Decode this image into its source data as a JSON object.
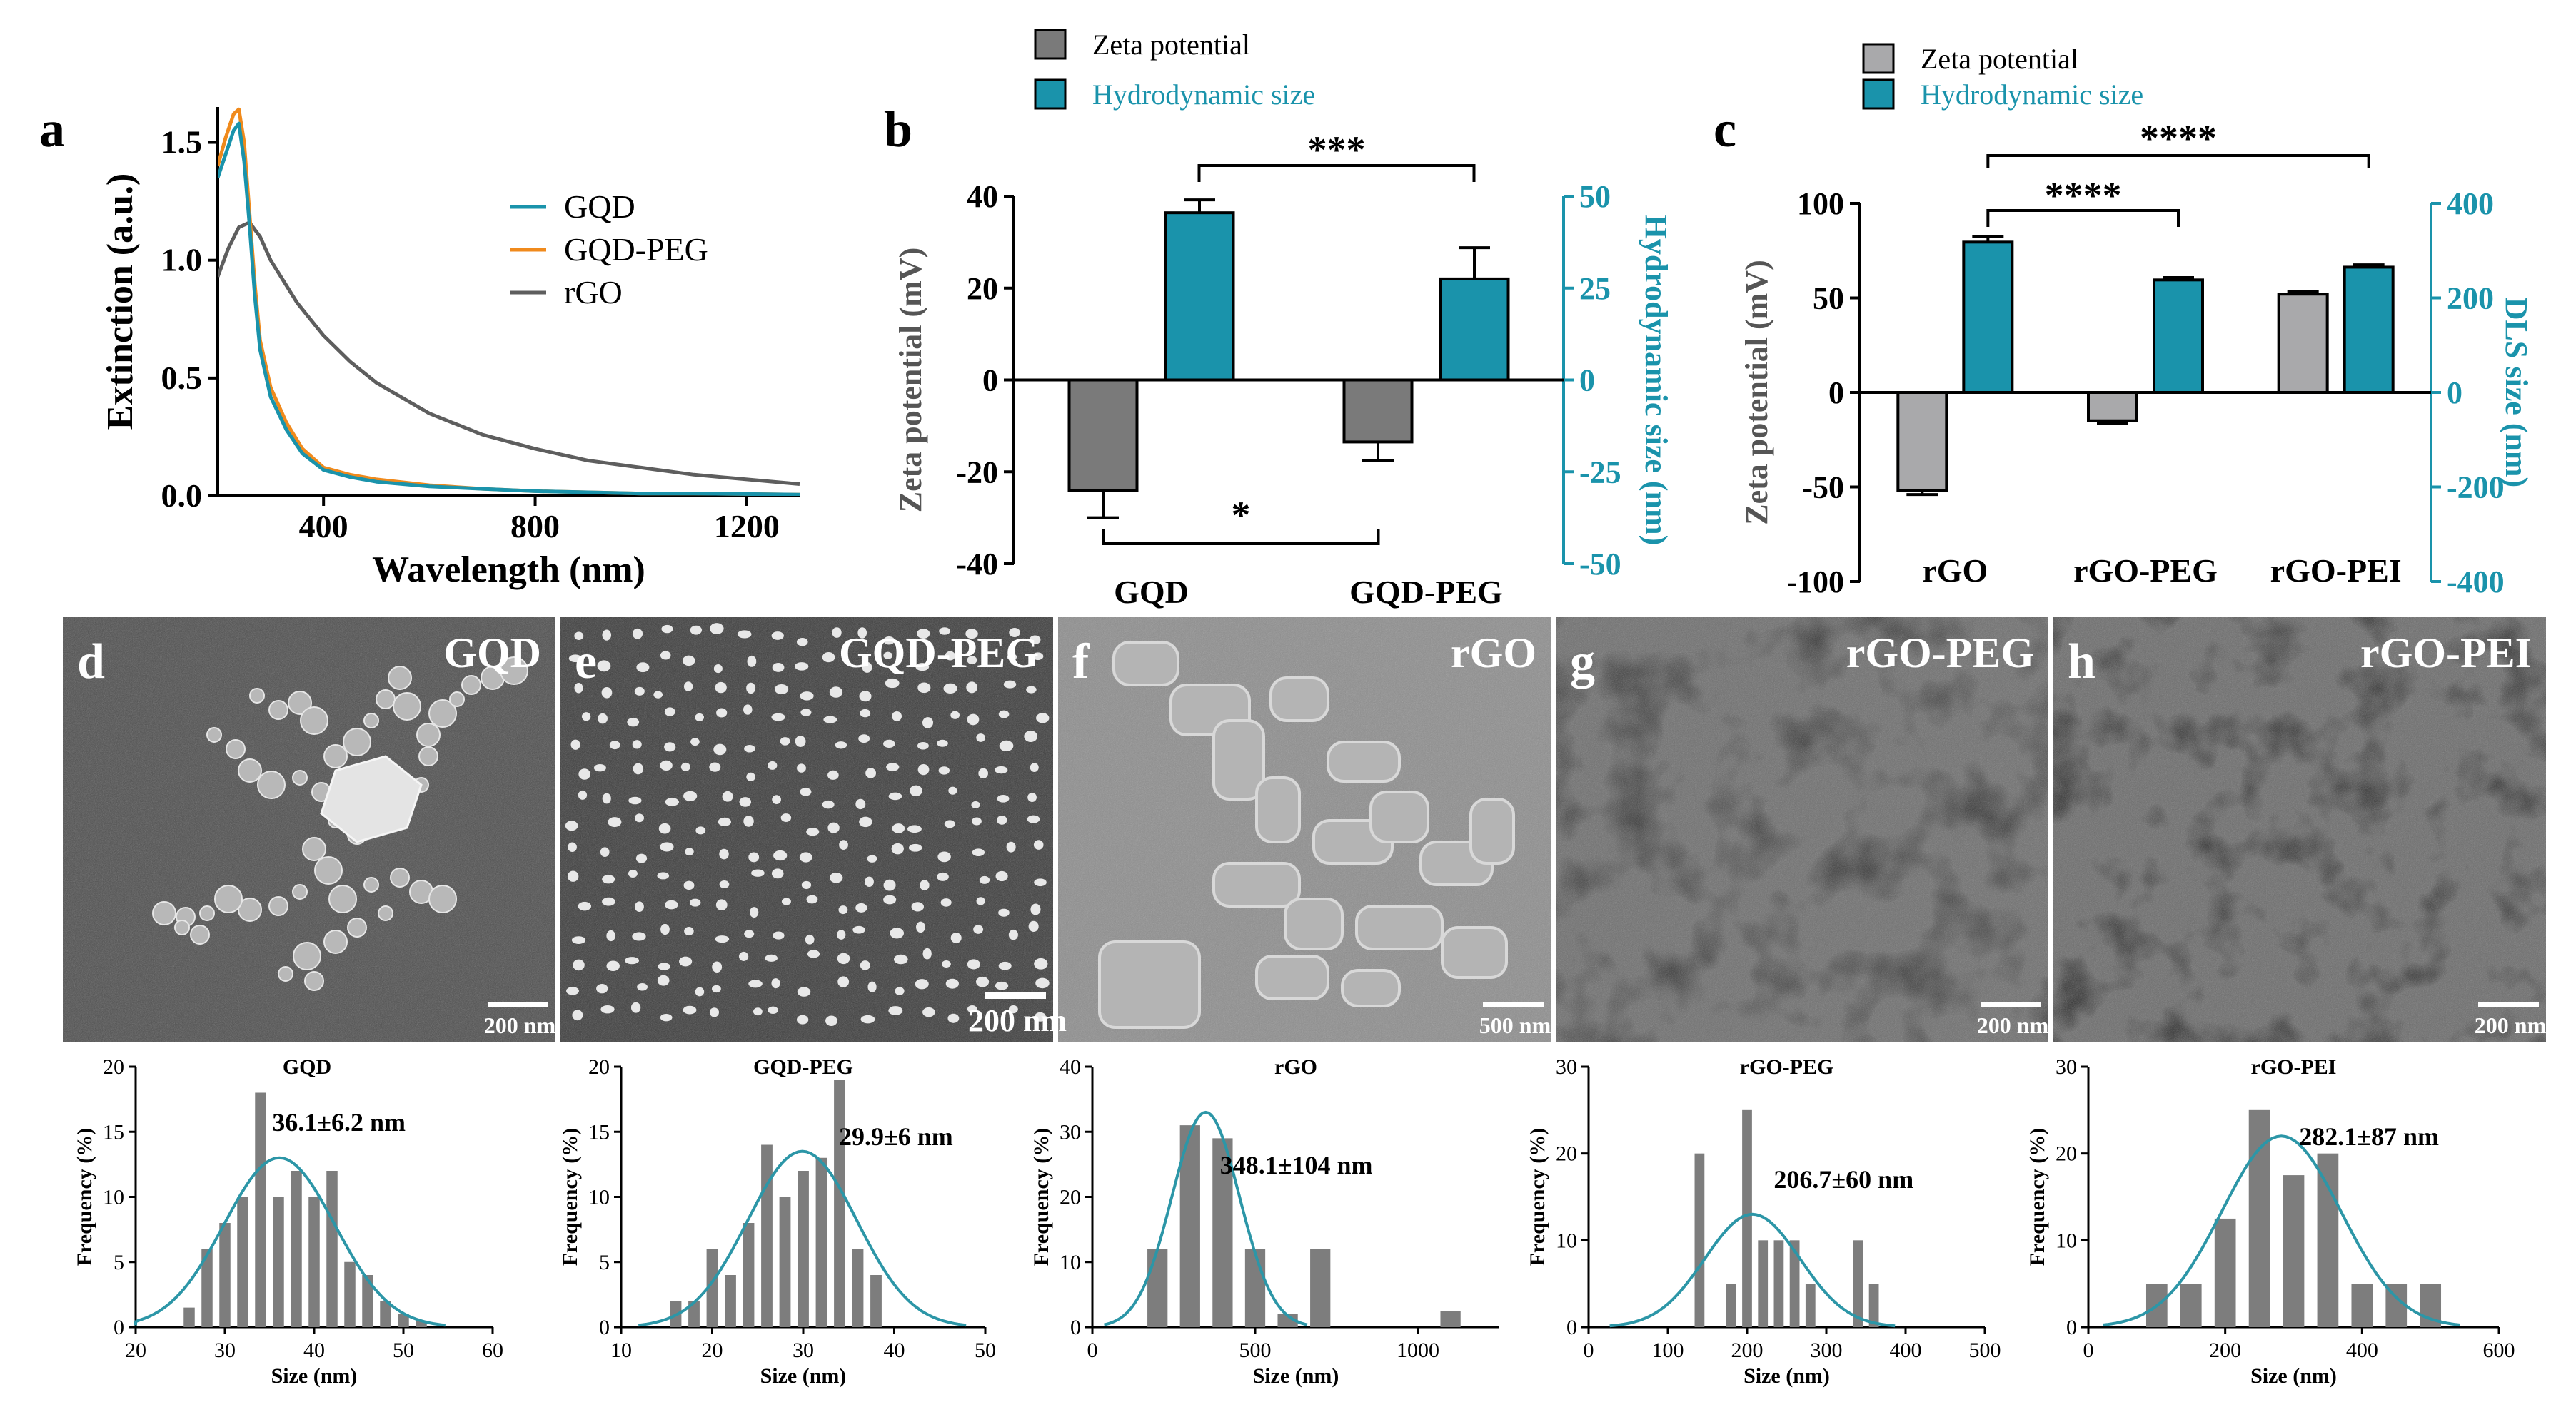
{
  "colors": {
    "teal": "#1a93ab",
    "orange": "#f08a1c",
    "gray": "#5e5e5e",
    "darkbar": "#7a7a7a",
    "lightbar": "#a9a9ab",
    "histbar": "#7d7d7d",
    "fit": "#2c96a7"
  },
  "panel_a": {
    "letter": "a",
    "chart_data": {
      "type": "line",
      "xlabel": "Wavelength (nm)",
      "ylabel": "Extinction (a.u.)",
      "xlim": [
        200,
        1300
      ],
      "ylim": [
        0,
        1.65
      ],
      "xticks": [
        "400",
        "800",
        "1200"
      ],
      "yticks": [
        "0.0",
        "0.5",
        "1.0",
        "1.5"
      ],
      "xtick_values": [
        400,
        800,
        1200
      ],
      "ytick_values": [
        0,
        0.5,
        1.0,
        1.5
      ],
      "series": [
        {
          "name": "GQD",
          "color": "#1a93ab",
          "x": [
            200,
            215,
            230,
            240,
            250,
            260,
            270,
            280,
            300,
            330,
            360,
            400,
            450,
            500,
            600,
            700,
            800,
            900,
            1000,
            1100,
            1200,
            1300
          ],
          "y": [
            1.35,
            1.45,
            1.55,
            1.58,
            1.42,
            1.15,
            0.85,
            0.62,
            0.42,
            0.28,
            0.18,
            0.11,
            0.08,
            0.06,
            0.04,
            0.03,
            0.02,
            0.015,
            0.01,
            0.01,
            0.008,
            0.005
          ]
        },
        {
          "name": "GQD-PEG",
          "color": "#f08a1c",
          "x": [
            200,
            215,
            230,
            240,
            250,
            260,
            270,
            280,
            300,
            330,
            360,
            400,
            450,
            500,
            600,
            700,
            800,
            900,
            1000,
            1100,
            1200,
            1300
          ],
          "y": [
            1.4,
            1.52,
            1.62,
            1.64,
            1.5,
            1.2,
            0.9,
            0.66,
            0.46,
            0.31,
            0.2,
            0.12,
            0.09,
            0.07,
            0.045,
            0.03,
            0.02,
            0.015,
            0.01,
            0.01,
            0.008,
            0.005
          ]
        },
        {
          "name": "rGO",
          "color": "#5e5e5e",
          "x": [
            200,
            220,
            240,
            260,
            280,
            300,
            350,
            400,
            450,
            500,
            600,
            700,
            800,
            900,
            1000,
            1100,
            1200,
            1300
          ],
          "y": [
            0.93,
            1.05,
            1.14,
            1.16,
            1.1,
            1.0,
            0.82,
            0.68,
            0.57,
            0.48,
            0.35,
            0.26,
            0.2,
            0.15,
            0.12,
            0.09,
            0.07,
            0.05
          ]
        }
      ]
    }
  },
  "panel_b": {
    "letter": "b",
    "legend": [
      "Zeta potential",
      "Hydrodynamic size"
    ],
    "chart_data": {
      "type": "bar",
      "categories": [
        "GQD",
        "GQD-PEG"
      ],
      "series": [
        {
          "name": "Zeta potential",
          "axis": "left",
          "values": [
            -24,
            -13.5
          ],
          "errors": [
            6,
            4
          ]
        },
        {
          "name": "Hydrodynamic size",
          "axis": "right",
          "values": [
            45.5,
            27.5
          ],
          "errors": [
            3.5,
            8.5
          ]
        }
      ],
      "ylabel": "Zeta potential (mV)",
      "y2label": "Hydrodynamic size (nm)",
      "ylim": [
        -40,
        40
      ],
      "y2lim": [
        -50,
        50
      ],
      "yticks": [
        "40",
        "20",
        "0",
        "-20",
        "-40"
      ],
      "ytick_values": [
        40,
        20,
        0,
        -20,
        -40
      ],
      "y2ticks": [
        "50",
        "25",
        "0",
        "-25",
        "-50"
      ],
      "y2tick_values": [
        50,
        25,
        0,
        -25,
        -50
      ],
      "annotations": [
        "***",
        "*"
      ]
    }
  },
  "panel_c": {
    "letter": "c",
    "legend": [
      "Zeta potential",
      "Hydrodynamic size"
    ],
    "chart_data": {
      "type": "bar",
      "categories": [
        "rGO",
        "rGO-PEG",
        "rGO-PEI"
      ],
      "series": [
        {
          "name": "Zeta potential",
          "axis": "left",
          "values": [
            -52,
            -15,
            52
          ],
          "errors": [
            2,
            1.5,
            1.5
          ]
        },
        {
          "name": "Hydrodynamic size",
          "axis": "right",
          "values": [
            318,
            238,
            265
          ],
          "errors": [
            12,
            5,
            5
          ]
        }
      ],
      "ylabel": "Zeta potential (mV)",
      "y2label": "DLS size (nm)",
      "ylim": [
        -100,
        100
      ],
      "y2lim": [
        -400,
        400
      ],
      "yticks": [
        "100",
        "50",
        "0",
        "-50",
        "-100"
      ],
      "ytick_values": [
        100,
        50,
        0,
        -50,
        -100
      ],
      "y2ticks": [
        "400",
        "200",
        "0",
        "-200",
        "-400"
      ],
      "y2tick_values": [
        400,
        200,
        0,
        -200,
        -400
      ],
      "annotations": [
        "****",
        "****"
      ]
    }
  },
  "sem": [
    {
      "letter": "d",
      "title": "GQD",
      "scale": "200 nm"
    },
    {
      "letter": "e",
      "title": "GQD-PEG",
      "scale": "200 nm"
    },
    {
      "letter": "f",
      "title": "rGO",
      "scale": "500 nm"
    },
    {
      "letter": "g",
      "title": "rGO-PEG",
      "scale": "200 nm"
    },
    {
      "letter": "h",
      "title": "rGO-PEI",
      "scale": "200 nm"
    }
  ],
  "histograms": [
    {
      "type": "bar",
      "title": "GQD",
      "annotation": "36.1±6.2 nm",
      "xlabel": "Size (nm)",
      "ylabel": "Frequency (%)",
      "xlim": [
        20,
        60
      ],
      "ylim": [
        0,
        20
      ],
      "xticks": [
        "20",
        "30",
        "40",
        "50",
        "60"
      ],
      "xtick_values": [
        20,
        30,
        40,
        50,
        60
      ],
      "yticks": [
        "0",
        "5",
        "10",
        "15",
        "20"
      ],
      "ytick_values": [
        0,
        5,
        10,
        15,
        20
      ],
      "x": [
        26,
        28,
        30,
        32,
        34,
        36,
        38,
        40,
        42,
        44,
        46,
        48,
        50,
        52
      ],
      "values": [
        1.5,
        6,
        8,
        10,
        18,
        10,
        12,
        10,
        12,
        5,
        4,
        2,
        1,
        0.5
      ],
      "fit": {
        "mean": 36.1,
        "sd": 6.2,
        "peak": 13
      }
    },
    {
      "type": "bar",
      "title": "GQD-PEG",
      "annotation": "29.9±6 nm",
      "xlabel": "Size (nm)",
      "ylabel": "Frequency (%)",
      "xlim": [
        10,
        50
      ],
      "ylim": [
        0,
        20
      ],
      "xticks": [
        "10",
        "20",
        "30",
        "40",
        "50"
      ],
      "xtick_values": [
        10,
        20,
        30,
        40,
        50
      ],
      "yticks": [
        "0",
        "5",
        "10",
        "15",
        "20"
      ],
      "ytick_values": [
        0,
        5,
        10,
        15,
        20
      ],
      "x": [
        16,
        18,
        20,
        22,
        24,
        26,
        28,
        30,
        32,
        34,
        36,
        38
      ],
      "values": [
        2,
        2,
        6,
        4,
        8,
        14,
        10,
        12,
        13,
        19,
        6,
        4
      ],
      "fit": {
        "mean": 29.9,
        "sd": 6,
        "peak": 13.5
      }
    },
    {
      "type": "bar",
      "title": "rGO",
      "annotation": "348.1±104 nm",
      "xlabel": "Size (nm)",
      "ylabel": "Frequency (%)",
      "xlim": [
        0,
        1250
      ],
      "ylim": [
        0,
        40
      ],
      "xticks": [
        "0",
        "500",
        "1000"
      ],
      "xtick_values": [
        0,
        500,
        1000
      ],
      "yticks": [
        "0",
        "10",
        "20",
        "30",
        "40"
      ],
      "ytick_values": [
        0,
        10,
        20,
        30,
        40
      ],
      "x": [
        200,
        300,
        400,
        500,
        600,
        700,
        1100
      ],
      "values": [
        12,
        31,
        29,
        12,
        2,
        12,
        2.5
      ],
      "fit": {
        "mean": 348.1,
        "sd": 104,
        "peak": 33
      }
    },
    {
      "type": "bar",
      "title": "rGO-PEG",
      "annotation": "206.7±60 nm",
      "xlabel": "Size (nm)",
      "ylabel": "Frequency (%)",
      "xlim": [
        0,
        500
      ],
      "ylim": [
        0,
        30
      ],
      "xticks": [
        "0",
        "100",
        "200",
        "300",
        "400",
        "500"
      ],
      "xtick_values": [
        0,
        100,
        200,
        300,
        400,
        500
      ],
      "yticks": [
        "0",
        "10",
        "20",
        "30"
      ],
      "ytick_values": [
        0,
        10,
        20,
        30
      ],
      "x": [
        140,
        180,
        200,
        220,
        240,
        260,
        280,
        340,
        360
      ],
      "values": [
        20,
        5,
        25,
        10,
        10,
        10,
        5,
        10,
        5
      ],
      "fit": {
        "mean": 206.7,
        "sd": 60,
        "peak": 13
      }
    },
    {
      "type": "bar",
      "title": "rGO-PEI",
      "annotation": "282.1±87 nm",
      "xlabel": "Size (nm)",
      "ylabel": "Frequency (%)",
      "xlim": [
        0,
        600
      ],
      "ylim": [
        0,
        30
      ],
      "xticks": [
        "0",
        "200",
        "400",
        "600"
      ],
      "xtick_values": [
        0,
        200,
        400,
        600
      ],
      "yticks": [
        "0",
        "10",
        "20",
        "30"
      ],
      "ytick_values": [
        0,
        10,
        20,
        30
      ],
      "x": [
        100,
        150,
        200,
        250,
        300,
        350,
        400,
        450,
        500
      ],
      "values": [
        5,
        5,
        12.5,
        25,
        17.5,
        20,
        5,
        5,
        5
      ],
      "fit": {
        "mean": 282.1,
        "sd": 87,
        "peak": 22
      }
    }
  ]
}
